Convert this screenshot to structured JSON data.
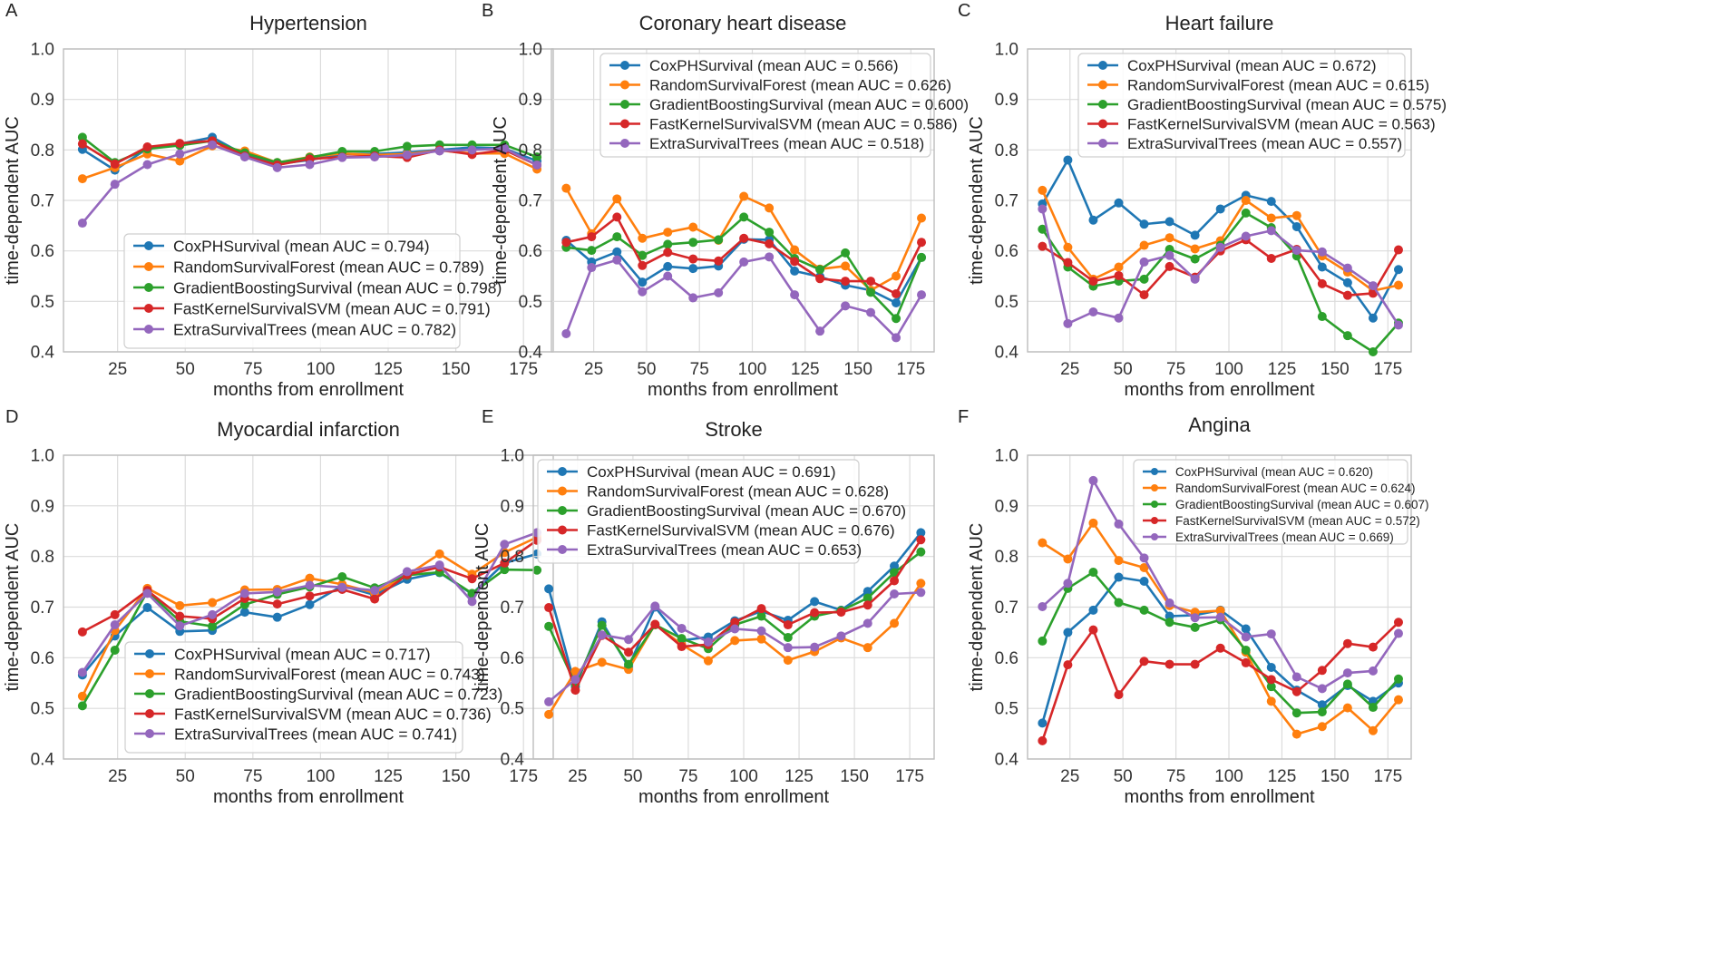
{
  "chart_data": [
    {
      "panel": "A",
      "type": "line",
      "title": "Hypertension",
      "xlabel": "months from enrollment",
      "ylabel": "time-dependent AUC",
      "ylim": [
        0.4,
        1.0
      ],
      "xlim": [
        5,
        186
      ],
      "xticks": [
        25,
        50,
        75,
        100,
        125,
        150,
        175
      ],
      "yticks": [
        0.4,
        0.5,
        0.6,
        0.7,
        0.8,
        0.9,
        1.0
      ],
      "legend_position": "lower-right",
      "x": [
        12,
        24,
        36,
        48,
        60,
        72,
        84,
        96,
        108,
        120,
        132,
        144,
        156,
        168,
        180
      ],
      "series": [
        {
          "name": "CoxPHSurvival (mean AUC = 0.794)",
          "color": "#1f77b4",
          "values": [
            0.801,
            0.76,
            0.803,
            0.812,
            0.825,
            0.79,
            0.772,
            0.78,
            0.792,
            0.792,
            0.795,
            0.8,
            0.805,
            0.803,
            0.778
          ]
        },
        {
          "name": "RandomSurvivalForest (mean AUC = 0.789)",
          "color": "#ff7f0e",
          "values": [
            0.743,
            0.765,
            0.792,
            0.778,
            0.808,
            0.798,
            0.775,
            0.786,
            0.793,
            0.79,
            0.792,
            0.799,
            0.793,
            0.793,
            0.762
          ]
        },
        {
          "name": "GradientBoostingSurvival (mean AUC = 0.798)",
          "color": "#2ca02c",
          "values": [
            0.825,
            0.775,
            0.802,
            0.809,
            0.818,
            0.794,
            0.775,
            0.785,
            0.797,
            0.797,
            0.807,
            0.81,
            0.81,
            0.81,
            0.786
          ]
        },
        {
          "name": "FastKernelSurvivalSVM (mean AUC = 0.791)",
          "color": "#d62728",
          "values": [
            0.812,
            0.772,
            0.806,
            0.813,
            0.818,
            0.788,
            0.77,
            0.782,
            0.786,
            0.788,
            0.785,
            0.8,
            0.791,
            0.8,
            0.77
          ]
        },
        {
          "name": "ExtraSurvivalTrees (mean AUC = 0.782)",
          "color": "#9467bd",
          "values": [
            0.655,
            0.732,
            0.771,
            0.792,
            0.81,
            0.786,
            0.765,
            0.771,
            0.785,
            0.786,
            0.79,
            0.798,
            0.8,
            0.803,
            0.77
          ]
        }
      ]
    },
    {
      "panel": "B",
      "type": "line",
      "title": "Coronary heart disease",
      "xlabel": "months from enrollment",
      "ylabel": "time-dependent AUC",
      "ylim": [
        0.4,
        1.0
      ],
      "xlim": [
        5,
        186
      ],
      "xticks": [
        25,
        50,
        75,
        100,
        125,
        150,
        175
      ],
      "yticks": [
        0.4,
        0.5,
        0.6,
        0.7,
        0.8,
        0.9,
        1.0
      ],
      "legend_position": "upper-right",
      "x": [
        12,
        24,
        36,
        48,
        60,
        72,
        84,
        96,
        108,
        120,
        132,
        144,
        156,
        168,
        180
      ],
      "series": [
        {
          "name": "CoxPHSurvival (mean AUC = 0.566)",
          "color": "#1f77b4",
          "values": [
            0.621,
            0.578,
            0.598,
            0.538,
            0.569,
            0.565,
            0.57,
            0.623,
            0.622,
            0.56,
            0.549,
            0.532,
            0.522,
            0.497,
            0.587
          ]
        },
        {
          "name": "RandomSurvivalForest (mean AUC = 0.626)",
          "color": "#ff7f0e",
          "values": [
            0.724,
            0.634,
            0.703,
            0.625,
            0.637,
            0.647,
            0.621,
            0.708,
            0.685,
            0.602,
            0.564,
            0.57,
            0.522,
            0.55,
            0.665
          ]
        },
        {
          "name": "GradientBoostingSurvival (mean AUC = 0.600)",
          "color": "#2ca02c",
          "values": [
            0.607,
            0.601,
            0.628,
            0.591,
            0.613,
            0.617,
            0.622,
            0.667,
            0.637,
            0.585,
            0.563,
            0.596,
            0.518,
            0.466,
            0.587
          ]
        },
        {
          "name": "FastKernelSurvivalSVM (mean AUC = 0.586)",
          "color": "#d62728",
          "values": [
            0.617,
            0.628,
            0.667,
            0.571,
            0.597,
            0.584,
            0.58,
            0.625,
            0.614,
            0.579,
            0.545,
            0.54,
            0.54,
            0.515,
            0.617
          ]
        },
        {
          "name": "ExtraSurvivalTrees (mean AUC = 0.518)",
          "color": "#9467bd",
          "values": [
            0.436,
            0.567,
            0.582,
            0.519,
            0.55,
            0.507,
            0.517,
            0.578,
            0.588,
            0.513,
            0.441,
            0.491,
            0.478,
            0.428,
            0.513
          ]
        }
      ]
    },
    {
      "panel": "C",
      "type": "line",
      "title": "Heart failure",
      "xlabel": "months from enrollment",
      "ylabel": "time-dependent AUC",
      "ylim": [
        0.4,
        1.0
      ],
      "xlim": [
        5,
        186
      ],
      "xticks": [
        25,
        50,
        75,
        100,
        125,
        150,
        175
      ],
      "yticks": [
        0.4,
        0.5,
        0.6,
        0.7,
        0.8,
        0.9,
        1.0
      ],
      "legend_position": "upper-right",
      "x": [
        12,
        24,
        36,
        48,
        60,
        72,
        84,
        96,
        108,
        120,
        132,
        144,
        156,
        168,
        180
      ],
      "series": [
        {
          "name": "CoxPHSurvival (mean AUC = 0.672)",
          "color": "#1f77b4",
          "values": [
            0.693,
            0.78,
            0.661,
            0.695,
            0.653,
            0.658,
            0.631,
            0.683,
            0.71,
            0.698,
            0.648,
            0.568,
            0.537,
            0.467,
            0.563
          ]
        },
        {
          "name": "RandomSurvivalForest (mean AUC = 0.615)",
          "color": "#ff7f0e",
          "values": [
            0.72,
            0.607,
            0.544,
            0.568,
            0.611,
            0.626,
            0.604,
            0.62,
            0.7,
            0.665,
            0.67,
            0.59,
            0.558,
            0.521,
            0.532
          ]
        },
        {
          "name": "GradientBoostingSurvival (mean AUC = 0.575)",
          "color": "#2ca02c",
          "values": [
            0.643,
            0.568,
            0.53,
            0.54,
            0.544,
            0.603,
            0.584,
            0.611,
            0.675,
            0.646,
            0.59,
            0.47,
            0.432,
            0.4,
            0.457
          ]
        },
        {
          "name": "FastKernelSurvivalSVM (mean AUC = 0.563)",
          "color": "#d62728",
          "values": [
            0.609,
            0.577,
            0.54,
            0.551,
            0.513,
            0.569,
            0.548,
            0.6,
            0.622,
            0.585,
            0.603,
            0.535,
            0.512,
            0.516,
            0.602
          ]
        },
        {
          "name": "ExtraSurvivalTrees (mean AUC = 0.557)",
          "color": "#9467bd",
          "values": [
            0.683,
            0.456,
            0.479,
            0.467,
            0.578,
            0.591,
            0.544,
            0.607,
            0.629,
            0.64,
            0.601,
            0.598,
            0.566,
            0.531,
            0.453
          ]
        }
      ]
    },
    {
      "panel": "D",
      "type": "line",
      "title": "Myocardial infarction",
      "xlabel": "months from enrollment",
      "ylabel": "time-dependent AUC",
      "ylim": [
        0.4,
        1.0
      ],
      "xlim": [
        5,
        186
      ],
      "xticks": [
        25,
        50,
        75,
        100,
        125,
        150,
        175
      ],
      "yticks": [
        0.4,
        0.5,
        0.6,
        0.7,
        0.8,
        0.9,
        1.0
      ],
      "legend_position": "lower-right",
      "x": [
        12,
        24,
        36,
        48,
        60,
        72,
        84,
        96,
        108,
        120,
        132,
        144,
        156,
        168,
        180
      ],
      "series": [
        {
          "name": "CoxPHSurvival (mean AUC = 0.717)",
          "color": "#1f77b4",
          "values": [
            0.566,
            0.643,
            0.699,
            0.652,
            0.654,
            0.69,
            0.68,
            0.705,
            0.742,
            0.724,
            0.755,
            0.768,
            0.726,
            0.787,
            0.805
          ]
        },
        {
          "name": "RandomSurvivalForest (mean AUC = 0.743)",
          "color": "#ff7f0e",
          "values": [
            0.524,
            0.654,
            0.737,
            0.703,
            0.709,
            0.734,
            0.735,
            0.757,
            0.745,
            0.728,
            0.763,
            0.805,
            0.765,
            0.808,
            0.838
          ]
        },
        {
          "name": "GradientBoostingSurvival (mean AUC = 0.723)",
          "color": "#2ca02c",
          "values": [
            0.505,
            0.615,
            0.731,
            0.672,
            0.662,
            0.705,
            0.725,
            0.74,
            0.76,
            0.738,
            0.763,
            0.769,
            0.727,
            0.774,
            0.773
          ]
        },
        {
          "name": "FastKernelSurvivalSVM (mean AUC = 0.736)",
          "color": "#d62728",
          "values": [
            0.651,
            0.685,
            0.733,
            0.682,
            0.677,
            0.717,
            0.706,
            0.722,
            0.735,
            0.716,
            0.764,
            0.779,
            0.756,
            0.787,
            0.832
          ]
        },
        {
          "name": "ExtraSurvivalTrees (mean AUC = 0.741)",
          "color": "#9467bd",
          "values": [
            0.571,
            0.665,
            0.727,
            0.663,
            0.685,
            0.727,
            0.73,
            0.743,
            0.739,
            0.733,
            0.77,
            0.783,
            0.711,
            0.824,
            0.847
          ]
        }
      ]
    },
    {
      "panel": "E",
      "type": "line",
      "title": "Stroke",
      "xlabel": "months from enrollment",
      "ylabel": "time-dependent AUC",
      "ylim": [
        0.4,
        1.0
      ],
      "xlim": [
        5,
        186
      ],
      "xticks": [
        25,
        50,
        75,
        100,
        125,
        150,
        175
      ],
      "yticks": [
        0.4,
        0.5,
        0.6,
        0.7,
        0.8,
        0.9,
        1.0
      ],
      "legend_position": "upper-left",
      "x": [
        12,
        24,
        36,
        48,
        60,
        72,
        84,
        96,
        108,
        120,
        132,
        144,
        156,
        168,
        180
      ],
      "series": [
        {
          "name": "CoxPHSurvival (mean AUC = 0.691)",
          "color": "#1f77b4",
          "values": [
            0.736,
            0.543,
            0.671,
            0.582,
            0.7,
            0.634,
            0.641,
            0.673,
            0.692,
            0.674,
            0.711,
            0.694,
            0.731,
            0.781,
            0.847
          ]
        },
        {
          "name": "RandomSurvivalForest (mean AUC = 0.628)",
          "color": "#ff7f0e",
          "values": [
            0.488,
            0.573,
            0.591,
            0.577,
            0.666,
            0.626,
            0.594,
            0.634,
            0.637,
            0.595,
            0.612,
            0.639,
            0.62,
            0.668,
            0.747
          ]
        },
        {
          "name": "GradientBoostingSurvival (mean AUC = 0.670)",
          "color": "#2ca02c",
          "values": [
            0.662,
            0.548,
            0.664,
            0.587,
            0.665,
            0.638,
            0.618,
            0.665,
            0.682,
            0.64,
            0.682,
            0.693,
            0.718,
            0.768,
            0.809
          ]
        },
        {
          "name": "FastKernelSurvivalSVM (mean AUC = 0.676)",
          "color": "#d62728",
          "values": [
            0.699,
            0.536,
            0.644,
            0.611,
            0.666,
            0.622,
            0.626,
            0.67,
            0.697,
            0.665,
            0.689,
            0.69,
            0.704,
            0.752,
            0.833
          ]
        },
        {
          "name": "ExtraSurvivalTrees (mean AUC = 0.653)",
          "color": "#9467bd",
          "values": [
            0.513,
            0.557,
            0.645,
            0.636,
            0.702,
            0.658,
            0.631,
            0.657,
            0.653,
            0.62,
            0.621,
            0.643,
            0.668,
            0.726,
            0.729
          ]
        }
      ]
    },
    {
      "panel": "F",
      "type": "line",
      "title": "Angina",
      "xlabel": "months from enrollment",
      "ylabel": "time-dependent AUC",
      "ylim": [
        0.4,
        1.0
      ],
      "xlim": [
        5,
        186
      ],
      "xticks": [
        25,
        50,
        75,
        100,
        125,
        150,
        175
      ],
      "yticks": [
        0.4,
        0.5,
        0.6,
        0.7,
        0.8,
        0.9,
        1.0
      ],
      "legend_position": "upper-right",
      "x": [
        12,
        24,
        36,
        48,
        60,
        72,
        84,
        96,
        108,
        120,
        132,
        144,
        156,
        168,
        180
      ],
      "series": [
        {
          "name": "CoxPHSurvival (mean AUC = 0.620)",
          "color": "#1f77b4",
          "values": [
            0.471,
            0.65,
            0.694,
            0.759,
            0.751,
            0.682,
            0.684,
            0.694,
            0.657,
            0.581,
            0.536,
            0.507,
            0.545,
            0.514,
            0.55
          ]
        },
        {
          "name": "RandomSurvivalForest (mean AUC = 0.624)",
          "color": "#ff7f0e",
          "values": [
            0.827,
            0.795,
            0.866,
            0.792,
            0.778,
            0.703,
            0.69,
            0.693,
            0.611,
            0.514,
            0.449,
            0.464,
            0.501,
            0.456,
            0.517
          ]
        },
        {
          "name": "GradientBoostingSurvival (mean AUC = 0.607)",
          "color": "#2ca02c",
          "values": [
            0.633,
            0.737,
            0.769,
            0.709,
            0.694,
            0.67,
            0.66,
            0.675,
            0.615,
            0.543,
            0.491,
            0.493,
            0.548,
            0.502,
            0.558
          ]
        },
        {
          "name": "FastKernelSurvivalSVM (mean AUC = 0.572)",
          "color": "#d62728",
          "values": [
            0.436,
            0.586,
            0.655,
            0.527,
            0.593,
            0.587,
            0.587,
            0.619,
            0.59,
            0.557,
            0.533,
            0.575,
            0.628,
            0.621,
            0.67
          ]
        },
        {
          "name": "ExtraSurvivalTrees (mean AUC = 0.669)",
          "color": "#9467bd",
          "values": [
            0.701,
            0.747,
            0.95,
            0.864,
            0.797,
            0.708,
            0.679,
            0.68,
            0.641,
            0.647,
            0.562,
            0.539,
            0.57,
            0.574,
            0.648
          ]
        }
      ]
    }
  ]
}
